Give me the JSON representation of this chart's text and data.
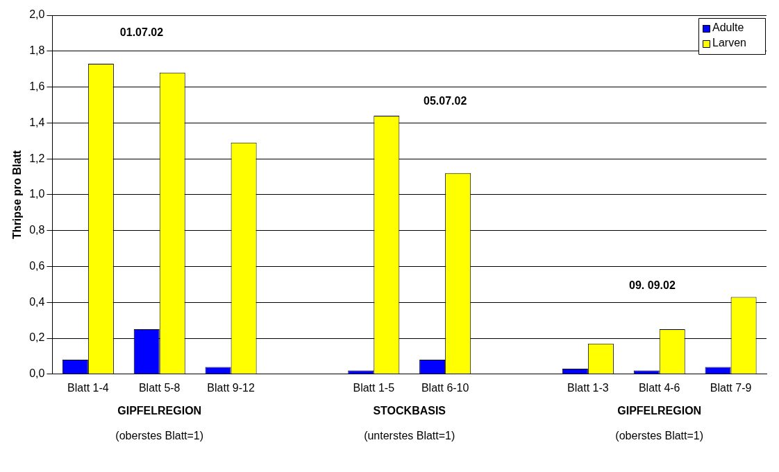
{
  "chart_data": {
    "type": "bar",
    "ylabel": "Thripse pro Blatt",
    "categories": [
      "Blatt 1-4",
      "Blatt 5-8",
      "Blatt 9-12",
      null,
      "Blatt 1-5",
      "Blatt 6-10",
      null,
      "Blatt 1-3",
      "Blatt 4-6",
      "Blatt 7-9"
    ],
    "series": [
      {
        "name": "Adulte",
        "color": "#0000ff",
        "values": [
          0.08,
          0.25,
          0.04,
          null,
          0.02,
          0.08,
          null,
          0.03,
          0.02,
          0.04
        ]
      },
      {
        "name": "Larven",
        "color": "#ffff00",
        "values": [
          1.73,
          1.68,
          1.29,
          null,
          1.44,
          1.12,
          null,
          0.17,
          0.25,
          0.43
        ]
      }
    ],
    "ylim": [
      0,
      2
    ],
    "yticks": [
      {
        "value": 0,
        "label": "0,0"
      },
      {
        "value": 0.2,
        "label": "0,2"
      },
      {
        "value": 0.4,
        "label": "0,4"
      },
      {
        "value": 0.6,
        "label": "0,6"
      },
      {
        "value": 0.8,
        "label": "0,8"
      },
      {
        "value": 1,
        "label": "1,0"
      },
      {
        "value": 1.2,
        "label": "1,2"
      },
      {
        "value": 1.4,
        "label": "1,4"
      },
      {
        "value": 1.6,
        "label": "1,6"
      },
      {
        "value": 1.8,
        "label": "1,8"
      },
      {
        "value": 2,
        "label": "2,0"
      }
    ],
    "grid": "y",
    "legend": "top right",
    "annotations": [
      "01.07.02",
      "05.07.02",
      "09. 09.02",
      "GIPFELREGION",
      "(oberstes Blatt=1)",
      "STOCKBASIS",
      "(unterstes Blatt=1)",
      "GIPFELREGION",
      "(oberstes Blatt=1)"
    ]
  }
}
